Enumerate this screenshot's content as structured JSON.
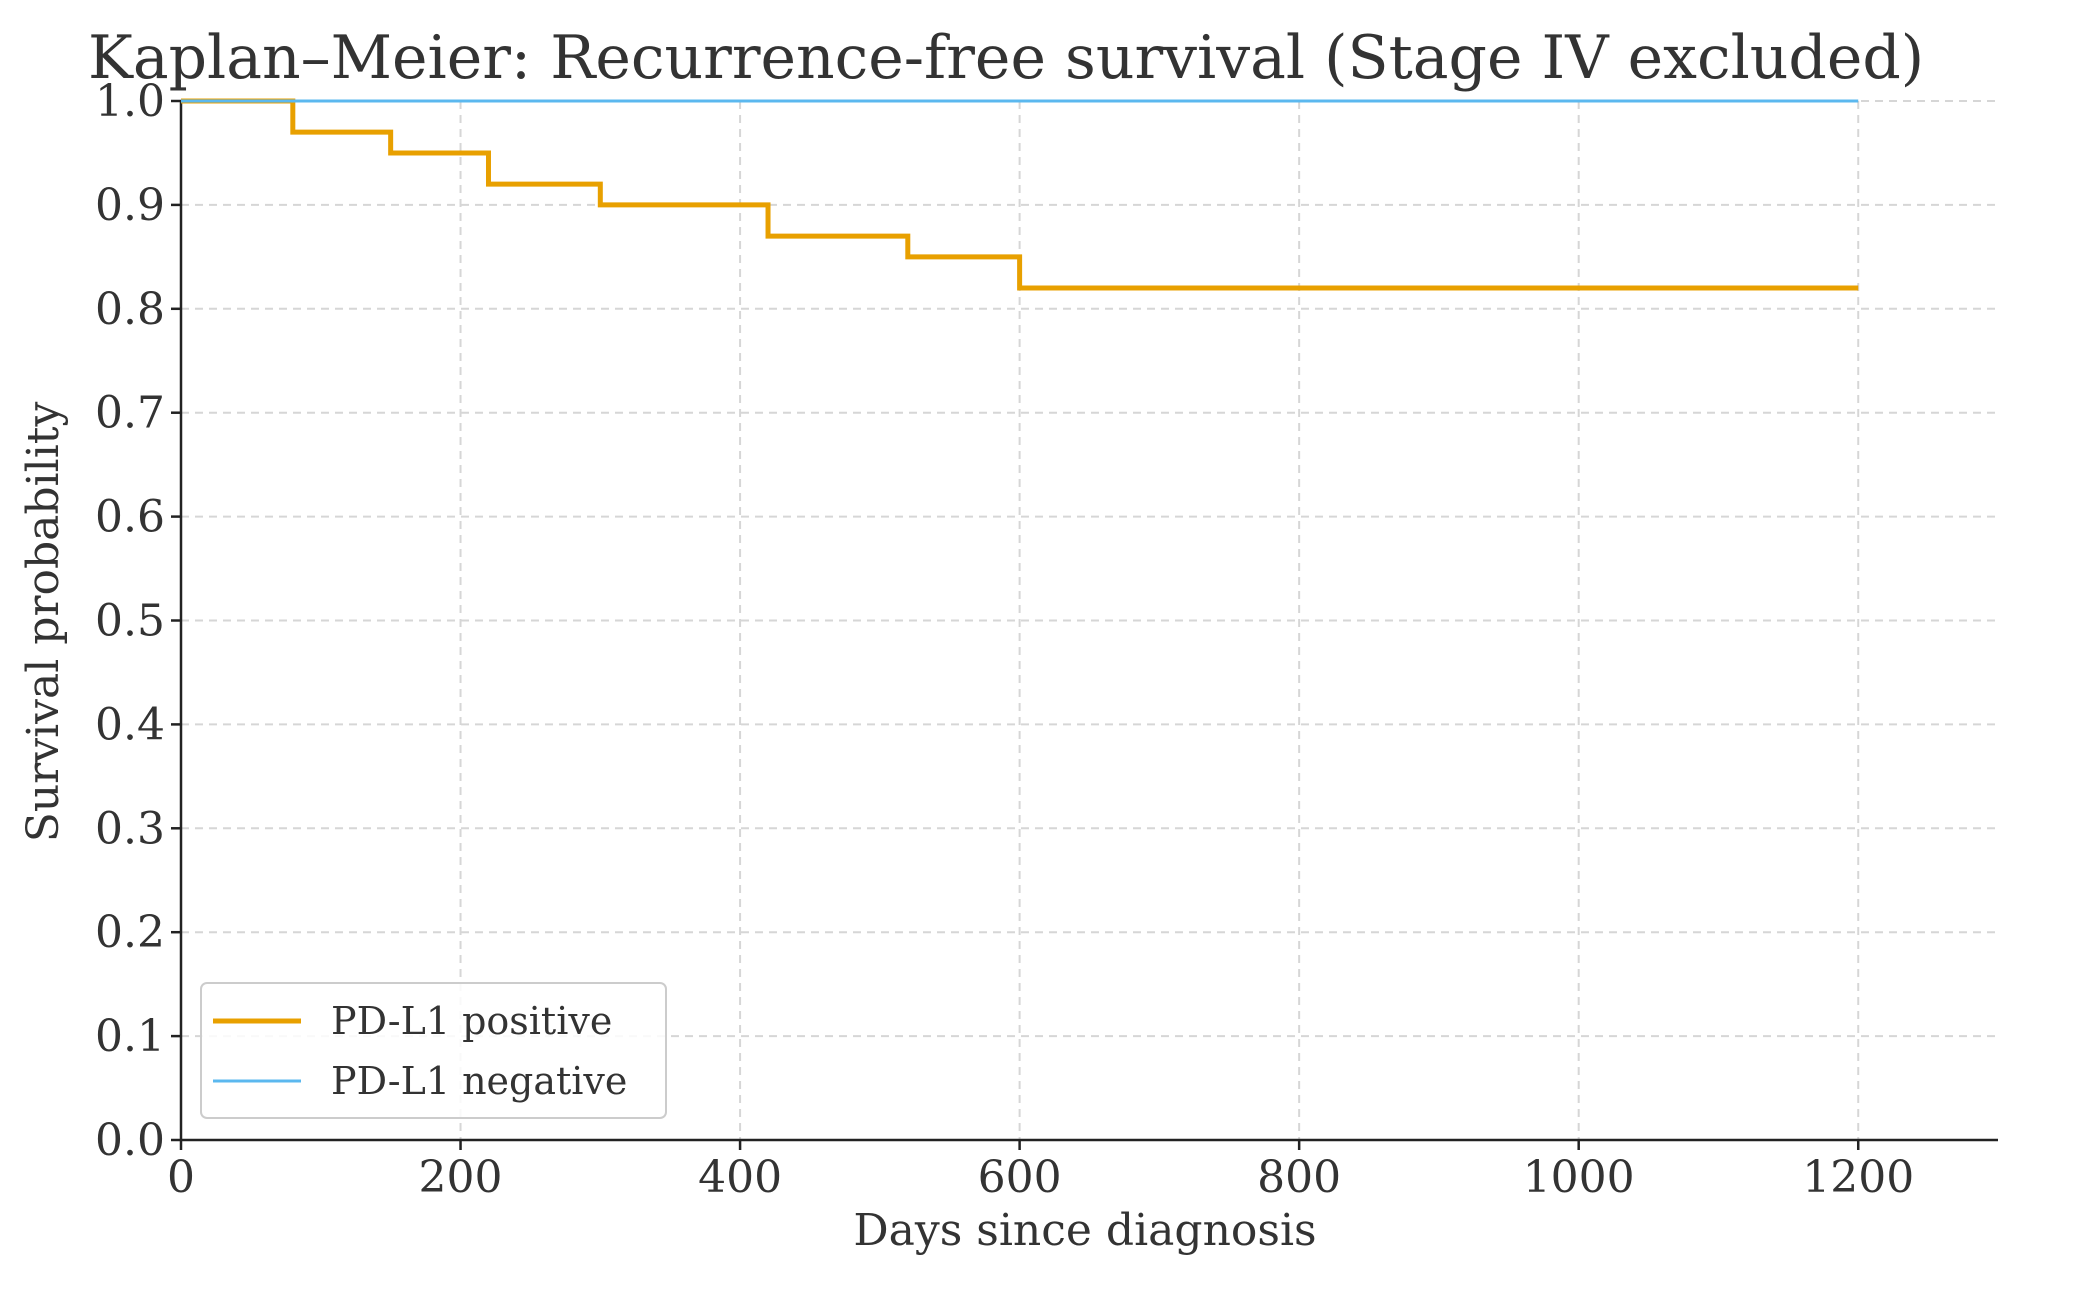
{
  "chart_data": {
    "type": "line",
    "subtype": "step",
    "title": "Kaplan–Meier: Recurrence-free survival (Stage IV excluded)",
    "xlabel": "Days since diagnosis",
    "ylabel": "Survival probability",
    "xlim": [
      0,
      1300
    ],
    "ylim": [
      0,
      1.0
    ],
    "x_ticks": [
      0,
      200,
      400,
      600,
      800,
      1000,
      1200
    ],
    "x_tick_labels": [
      "0",
      "200",
      "400",
      "600",
      "800",
      "1000",
      "1200"
    ],
    "y_ticks": [
      0.0,
      0.1,
      0.2,
      0.3,
      0.4,
      0.5,
      0.6,
      0.7,
      0.8,
      0.9,
      1.0
    ],
    "y_tick_labels": [
      "0.0",
      "0.1",
      "0.2",
      "0.3",
      "0.4",
      "0.5",
      "0.6",
      "0.7",
      "0.8",
      "0.9",
      "1.0"
    ],
    "grid": true,
    "legend_position": "lower-left",
    "series": [
      {
        "name": "PD-L1 positive",
        "color": "#e8a000",
        "x": [
          0,
          80,
          150,
          220,
          300,
          420,
          520,
          600,
          1200
        ],
        "y": [
          1.0,
          0.97,
          0.95,
          0.92,
          0.9,
          0.87,
          0.85,
          0.82,
          0.82
        ]
      },
      {
        "name": "PD-L1 negative",
        "color": "#5bb8ef",
        "x": [
          0,
          1200
        ],
        "y": [
          1.0,
          1.0
        ]
      }
    ]
  }
}
